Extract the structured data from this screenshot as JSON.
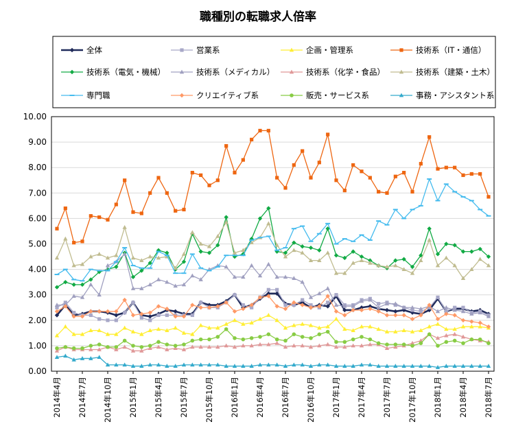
{
  "chart_data": {
    "type": "line",
    "title": "職種別の転職求人倍率",
    "xlabel": "",
    "ylabel": "",
    "ylim": [
      0,
      10
    ],
    "yticks": [
      "0.00",
      "1.00",
      "2.00",
      "3.00",
      "4.00",
      "5.00",
      "6.00",
      "7.00",
      "8.00",
      "9.00",
      "10.00"
    ],
    "x": [
      "2014年4月",
      "2014年5月",
      "2014年6月",
      "2014年7月",
      "2014年8月",
      "2014年9月",
      "2014年10月",
      "2014年11月",
      "2014年12月",
      "2015年1月",
      "2015年2月",
      "2015年3月",
      "2015年4月",
      "2015年5月",
      "2015年6月",
      "2015年7月",
      "2015年8月",
      "2015年9月",
      "2015年10月",
      "2015年11月",
      "2015年12月",
      "2016年1月",
      "2016年2月",
      "2016年3月",
      "2016年4月",
      "2016年5月",
      "2016年6月",
      "2016年7月",
      "2016年8月",
      "2016年9月",
      "2016年10月",
      "2016年11月",
      "2016年12月",
      "2017年1月",
      "2017年2月",
      "2017年3月",
      "2017年4月",
      "2017年5月",
      "2017年6月",
      "2017年7月",
      "2017年8月",
      "2017年9月",
      "2017年10月",
      "2017年11月",
      "2017年12月",
      "2018年1月",
      "2018年2月",
      "2018年3月",
      "2018年4月",
      "2018年5月",
      "2018年6月",
      "2018年7月"
    ],
    "xtick_labels": [
      "2014年4月",
      "2014年7月",
      "2014年10月",
      "2015年1月",
      "2015年4月",
      "2015年7月",
      "2015年10月",
      "2016年1月",
      "2016年4月",
      "2016年7月",
      "2016年10月",
      "2017年1月",
      "2017年4月",
      "2017年7月",
      "2017年10月",
      "2018年1月",
      "2018年4月",
      "2018年7月"
    ],
    "grid": true,
    "legend": "top",
    "series": [
      {
        "name": "全体",
        "color": "#1f2a5a",
        "marker": "diamond",
        "values": [
          2.2,
          2.6,
          2.2,
          2.25,
          2.35,
          2.35,
          2.3,
          2.2,
          2.3,
          2.7,
          2.2,
          2.15,
          2.25,
          2.4,
          2.35,
          2.25,
          2.25,
          2.7,
          2.6,
          2.6,
          2.75,
          3.0,
          2.5,
          2.6,
          2.85,
          3.05,
          3.05,
          2.65,
          2.6,
          2.7,
          2.5,
          2.6,
          2.55,
          2.95,
          2.4,
          2.4,
          2.5,
          2.55,
          2.45,
          2.4,
          2.35,
          2.4,
          2.3,
          2.25,
          2.4,
          2.85,
          2.35,
          2.45,
          2.45,
          2.35,
          2.4,
          2.25
        ]
      },
      {
        "name": "営業系",
        "color": "#a8a8c8",
        "marker": "square",
        "values": [
          2.5,
          2.7,
          2.3,
          2.2,
          2.2,
          2.05,
          2.0,
          2.0,
          2.3,
          2.7,
          2.1,
          2.0,
          2.2,
          2.2,
          2.2,
          2.2,
          2.2,
          2.7,
          2.5,
          2.5,
          2.7,
          3.0,
          2.6,
          2.5,
          2.9,
          3.2,
          3.2,
          2.6,
          2.6,
          2.8,
          2.6,
          2.5,
          2.7,
          3.0,
          2.6,
          2.6,
          2.8,
          2.85,
          2.65,
          2.7,
          2.6,
          2.5,
          2.4,
          2.35,
          2.5,
          2.9,
          2.35,
          2.5,
          2.5,
          2.3,
          2.35,
          2.2
        ]
      },
      {
        "name": "企画・管理系",
        "color": "#ffee33",
        "marker": "triangle",
        "values": [
          1.4,
          1.75,
          1.45,
          1.45,
          1.6,
          1.6,
          1.45,
          1.45,
          1.7,
          1.55,
          1.45,
          1.6,
          1.65,
          1.6,
          1.7,
          1.5,
          1.45,
          1.8,
          1.7,
          1.7,
          1.85,
          2.0,
          1.85,
          1.9,
          2.05,
          2.2,
          2.0,
          1.7,
          1.8,
          1.85,
          1.8,
          1.7,
          1.75,
          2.05,
          1.65,
          1.6,
          1.75,
          1.75,
          1.65,
          1.55,
          1.55,
          1.6,
          1.55,
          1.6,
          1.75,
          1.85,
          1.65,
          1.65,
          1.75,
          1.75,
          1.75,
          1.7
        ]
      },
      {
        "name": "技術系（IT・通信）",
        "color": "#ee6611",
        "marker": "square",
        "values": [
          5.6,
          6.4,
          5.05,
          5.1,
          6.1,
          6.05,
          5.95,
          6.55,
          7.5,
          6.25,
          6.2,
          7.0,
          7.6,
          7.0,
          6.3,
          6.35,
          7.8,
          7.7,
          7.3,
          7.5,
          8.85,
          7.8,
          8.3,
          9.1,
          9.45,
          9.45,
          7.6,
          7.2,
          8.1,
          8.65,
          7.6,
          8.2,
          9.3,
          7.5,
          7.1,
          8.1,
          7.85,
          7.6,
          7.05,
          7.0,
          7.65,
          7.8,
          7.05,
          8.15,
          9.2,
          7.95,
          8.0,
          8.0,
          7.7,
          7.75,
          7.75,
          6.85
        ]
      },
      {
        "name": "技術系（電気・機械）",
        "color": "#11aa44",
        "marker": "diamond",
        "values": [
          3.3,
          3.5,
          3.4,
          3.4,
          3.6,
          3.9,
          4.0,
          4.1,
          4.65,
          3.7,
          3.95,
          4.25,
          4.75,
          4.65,
          4.0,
          4.3,
          5.4,
          4.7,
          4.65,
          4.95,
          6.05,
          4.5,
          4.6,
          5.2,
          6.0,
          6.4,
          4.7,
          4.65,
          5.05,
          4.9,
          4.85,
          4.75,
          5.6,
          4.55,
          4.45,
          4.7,
          4.5,
          4.35,
          4.15,
          4.05,
          4.35,
          4.4,
          4.1,
          4.55,
          5.6,
          4.6,
          5.0,
          4.95,
          4.7,
          4.7,
          4.8,
          4.5
        ]
      },
      {
        "name": "技術系（メディカル）",
        "color": "#a0a0c0",
        "marker": "triangle",
        "values": [
          2.6,
          2.6,
          2.95,
          2.9,
          3.4,
          3.0,
          4.15,
          4.3,
          4.6,
          3.25,
          3.25,
          3.4,
          3.6,
          3.5,
          3.35,
          3.4,
          3.75,
          3.6,
          4.0,
          4.15,
          4.1,
          3.7,
          3.7,
          4.15,
          3.75,
          4.2,
          3.7,
          3.7,
          3.65,
          3.5,
          2.9,
          3.05,
          3.25,
          2.6,
          2.55,
          2.55,
          2.75,
          2.8,
          2.5,
          2.65,
          2.65,
          2.5,
          2.5,
          2.45,
          2.55,
          2.35,
          2.5,
          2.4,
          2.35,
          2.25,
          2.3,
          2.15
        ]
      },
      {
        "name": "技術系（化学・食品）",
        "color": "#e09898",
        "marker": "triangle",
        "values": [
          0.8,
          0.95,
          0.85,
          0.85,
          0.85,
          0.85,
          0.95,
          0.85,
          0.95,
          0.8,
          0.8,
          0.9,
          0.95,
          0.85,
          0.9,
          0.85,
          0.95,
          0.95,
          0.95,
          0.95,
          1.0,
          0.95,
          1.0,
          1.0,
          1.05,
          1.05,
          1.1,
          0.95,
          1.0,
          1.0,
          0.95,
          1.0,
          1.05,
          0.95,
          0.95,
          1.0,
          1.0,
          1.05,
          1.05,
          0.9,
          0.95,
          1.0,
          1.1,
          1.2,
          1.45,
          1.3,
          1.4,
          1.45,
          1.35,
          1.25,
          1.2,
          1.15
        ]
      },
      {
        "name": "技術系（建築・土木）",
        "color": "#c0bc90",
        "marker": "triangle",
        "values": [
          4.45,
          5.2,
          4.15,
          4.2,
          4.5,
          4.6,
          4.45,
          4.55,
          5.65,
          4.45,
          4.35,
          4.5,
          4.45,
          4.5,
          4.05,
          4.6,
          5.45,
          5.0,
          4.9,
          5.3,
          5.85,
          4.65,
          4.75,
          5.05,
          5.25,
          5.8,
          4.95,
          4.5,
          4.75,
          4.65,
          4.35,
          4.35,
          4.65,
          3.85,
          3.85,
          4.25,
          4.35,
          4.25,
          4.15,
          4.1,
          4.15,
          4.0,
          3.85,
          4.35,
          5.15,
          4.15,
          4.45,
          4.15,
          3.65,
          4.0,
          4.4,
          4.15
        ]
      },
      {
        "name": "専門職",
        "color": "#44bbee",
        "marker": "dash",
        "values": [
          3.8,
          4.0,
          3.6,
          3.55,
          4.0,
          3.95,
          3.95,
          4.3,
          4.85,
          4.15,
          4.05,
          4.05,
          4.7,
          4.55,
          3.85,
          3.85,
          4.6,
          4.05,
          3.95,
          4.1,
          4.55,
          4.55,
          4.55,
          5.15,
          5.25,
          5.3,
          4.75,
          4.85,
          5.6,
          5.7,
          5.1,
          5.4,
          5.8,
          5.0,
          5.2,
          5.1,
          5.35,
          5.15,
          5.9,
          5.75,
          6.35,
          6.0,
          6.35,
          6.5,
          7.55,
          6.7,
          7.35,
          7.05,
          6.85,
          6.7,
          6.35,
          6.1
        ]
      },
      {
        "name": "クリエイティブ系",
        "color": "#ff9966",
        "marker": "diamond",
        "values": [
          2.35,
          2.55,
          2.15,
          2.15,
          2.35,
          2.35,
          2.35,
          2.35,
          2.8,
          2.2,
          2.25,
          2.3,
          2.55,
          2.45,
          2.15,
          2.15,
          2.6,
          2.5,
          2.5,
          2.55,
          2.7,
          2.35,
          2.45,
          2.6,
          2.9,
          2.95,
          2.55,
          2.45,
          2.7,
          2.6,
          2.5,
          2.55,
          2.95,
          2.35,
          2.2,
          2.4,
          2.4,
          2.45,
          2.35,
          2.2,
          2.2,
          2.2,
          2.05,
          2.2,
          2.6,
          2.05,
          2.25,
          2.2,
          2.0,
          1.95,
          1.9,
          1.75
        ]
      },
      {
        "name": "販売・サービス系",
        "color": "#88cc44",
        "marker": "circle",
        "values": [
          0.9,
          0.95,
          0.9,
          0.9,
          1.0,
          1.05,
          0.95,
          0.95,
          1.2,
          1.0,
          0.95,
          1.0,
          1.15,
          1.05,
          1.0,
          1.05,
          1.2,
          1.25,
          1.25,
          1.35,
          1.65,
          1.3,
          1.25,
          1.3,
          1.35,
          1.45,
          1.25,
          1.2,
          1.45,
          1.35,
          1.3,
          1.45,
          1.55,
          1.15,
          1.15,
          1.25,
          1.35,
          1.25,
          1.1,
          1.05,
          1.05,
          1.05,
          1.0,
          1.1,
          1.45,
          1.0,
          1.15,
          1.2,
          1.1,
          1.25,
          1.25,
          1.1
        ]
      },
      {
        "name": "事務・アシスタント系",
        "color": "#33aacc",
        "marker": "triangle",
        "values": [
          0.55,
          0.6,
          0.45,
          0.5,
          0.5,
          0.55,
          0.25,
          0.25,
          0.25,
          0.2,
          0.2,
          0.25,
          0.25,
          0.2,
          0.2,
          0.25,
          0.25,
          0.25,
          0.25,
          0.25,
          0.2,
          0.2,
          0.2,
          0.2,
          0.25,
          0.25,
          0.25,
          0.2,
          0.25,
          0.25,
          0.2,
          0.25,
          0.25,
          0.2,
          0.2,
          0.2,
          0.25,
          0.25,
          0.2,
          0.2,
          0.2,
          0.2,
          0.2,
          0.2,
          0.2,
          0.15,
          0.2,
          0.2,
          0.2,
          0.2,
          0.2,
          0.2
        ]
      }
    ]
  }
}
